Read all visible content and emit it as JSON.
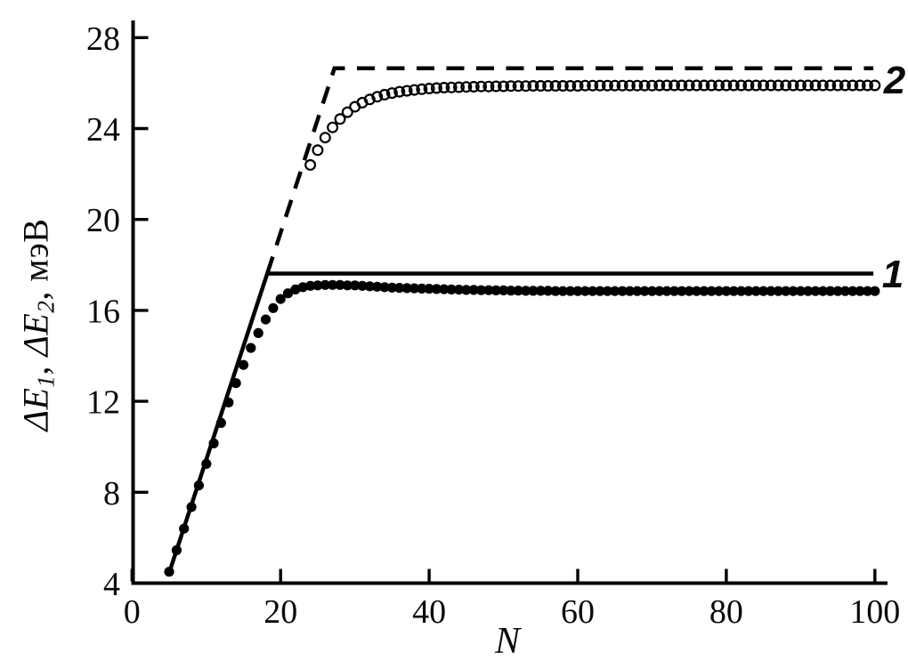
{
  "labels": {
    "y_e": "ΔE",
    "y_sub1": "1",
    "y_comma": ", ",
    "y_sub2": "2",
    "y_unit": ", мэВ",
    "x": "N",
    "curve1": "1",
    "curve2": "2"
  },
  "chart_data": {
    "type": "line",
    "title": "",
    "xlabel": "N",
    "ylabel": "ΔE1, ΔE2, мэВ",
    "xlim": [
      0,
      100
    ],
    "ylim": [
      4,
      28
    ],
    "x_ticks": [
      0,
      20,
      40,
      60,
      80,
      100
    ],
    "y_ticks": [
      4,
      8,
      12,
      16,
      20,
      24,
      28
    ],
    "grid": false,
    "legend": "curve labels 1 and 2 at right edge of plot",
    "colors": {
      "stroke": "#000000",
      "background": "#ffffff"
    },
    "series": [
      {
        "name": "1",
        "role": "limit-line",
        "style": "solid-line",
        "x": [
          5,
          18.2,
          99.8
        ],
        "y": [
          4.45,
          17.62,
          17.62
        ]
      },
      {
        "name": "2",
        "role": "limit-line",
        "style": "dashed-line",
        "x": [
          18.2,
          27.25,
          99.8
        ],
        "y": [
          17.62,
          26.65,
          26.65
        ]
      },
      {
        "name": "1",
        "role": "data-points",
        "style": "filled-circles",
        "x": [
          5,
          6,
          7,
          8,
          9,
          10,
          11,
          12,
          13,
          14,
          15,
          16,
          17,
          18,
          19,
          20,
          21,
          22,
          23,
          24,
          25,
          26,
          27,
          28,
          29,
          30,
          31,
          32,
          33,
          34,
          35,
          36,
          37,
          38,
          39,
          40,
          41,
          42,
          43,
          44,
          45,
          46,
          47,
          48,
          49,
          50,
          51,
          52,
          53,
          54,
          55,
          56,
          57,
          58,
          59,
          60,
          61,
          62,
          63,
          64,
          65,
          66,
          67,
          68,
          69,
          70,
          71,
          72,
          73,
          74,
          75,
          76,
          77,
          78,
          79,
          80,
          81,
          82,
          83,
          84,
          85,
          86,
          87,
          88,
          89,
          90,
          91,
          92,
          93,
          94,
          95,
          96,
          97,
          98,
          99,
          100
        ],
        "y": [
          4.5,
          5.45,
          6.4,
          7.35,
          8.3,
          9.25,
          10.15,
          11.05,
          11.95,
          12.8,
          13.6,
          14.35,
          15.0,
          15.6,
          16.1,
          16.5,
          16.75,
          16.92,
          17.02,
          17.08,
          17.1,
          17.12,
          17.12,
          17.12,
          17.1,
          17.1,
          17.08,
          17.06,
          17.04,
          17.02,
          17.0,
          16.99,
          16.98,
          16.97,
          16.96,
          16.95,
          16.94,
          16.93,
          16.92,
          16.91,
          16.9,
          16.9,
          16.89,
          16.89,
          16.88,
          16.88,
          16.87,
          16.87,
          16.86,
          16.86,
          16.86,
          16.86,
          16.85,
          16.85,
          16.85,
          16.85,
          16.85,
          16.85,
          16.85,
          16.85,
          16.85,
          16.85,
          16.85,
          16.85,
          16.85,
          16.85,
          16.85,
          16.85,
          16.85,
          16.85,
          16.85,
          16.85,
          16.85,
          16.85,
          16.85,
          16.85,
          16.85,
          16.85,
          16.85,
          16.85,
          16.85,
          16.85,
          16.85,
          16.85,
          16.85,
          16.85,
          16.85,
          16.85,
          16.85,
          16.85,
          16.85,
          16.85,
          16.85,
          16.85,
          16.85,
          16.85
        ]
      },
      {
        "name": "2",
        "role": "data-points",
        "style": "open-circles",
        "x": [
          24,
          25,
          26,
          27,
          28,
          29,
          30,
          31,
          32,
          33,
          34,
          35,
          36,
          37,
          38,
          39,
          40,
          41,
          42,
          43,
          44,
          45,
          46,
          47,
          48,
          49,
          50,
          51,
          52,
          53,
          54,
          55,
          56,
          57,
          58,
          59,
          60,
          61,
          62,
          63,
          64,
          65,
          66,
          67,
          68,
          69,
          70,
          71,
          72,
          73,
          74,
          75,
          76,
          77,
          78,
          79,
          80,
          81,
          82,
          83,
          84,
          85,
          86,
          87,
          88,
          89,
          90,
          91,
          92,
          93,
          94,
          95,
          96,
          97,
          98,
          99,
          100
        ],
        "y": [
          22.4,
          23.05,
          23.6,
          24.05,
          24.42,
          24.72,
          24.96,
          25.14,
          25.28,
          25.4,
          25.49,
          25.56,
          25.62,
          25.66,
          25.7,
          25.73,
          25.76,
          25.78,
          25.8,
          25.81,
          25.82,
          25.83,
          25.84,
          25.85,
          25.85,
          25.86,
          25.86,
          25.87,
          25.87,
          25.87,
          25.88,
          25.88,
          25.88,
          25.88,
          25.88,
          25.88,
          25.88,
          25.89,
          25.89,
          25.89,
          25.89,
          25.89,
          25.89,
          25.89,
          25.89,
          25.89,
          25.89,
          25.9,
          25.9,
          25.9,
          25.9,
          25.9,
          25.9,
          25.9,
          25.9,
          25.9,
          25.9,
          25.9,
          25.9,
          25.9,
          25.9,
          25.9,
          25.9,
          25.9,
          25.9,
          25.9,
          25.9,
          25.9,
          25.9,
          25.9,
          25.9,
          25.9,
          25.9,
          25.9,
          25.9,
          25.9,
          25.9
        ]
      }
    ]
  }
}
